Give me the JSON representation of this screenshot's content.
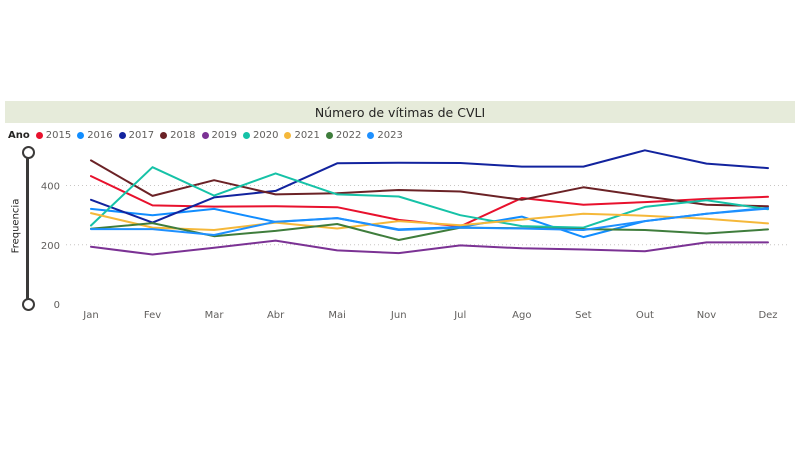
{
  "chart_data": {
    "type": "line",
    "title": "Número de vítimas de CVLI",
    "legend_title": "Ano",
    "ylabel": "Frequencia",
    "xlabel": "",
    "ylim": [
      0,
      520
    ],
    "yticks": [
      0,
      200,
      400
    ],
    "legend_position": "top-left",
    "grid": true,
    "categories": [
      "Jan",
      "Fev",
      "Mar",
      "Abr",
      "Mai",
      "Jun",
      "Jul",
      "Ago",
      "Set",
      "Out",
      "Nov",
      "Dez"
    ],
    "series": [
      {
        "name": "2015",
        "color": "#e8112d",
        "values": [
          432,
          333,
          329,
          330,
          327,
          284,
          262,
          358,
          335,
          344,
          355,
          362
        ]
      },
      {
        "name": "2016",
        "color": "#118dff",
        "values": [
          321,
          300,
          321,
          277,
          290,
          252,
          260,
          295,
          226,
          280,
          305,
          325
        ]
      },
      {
        "name": "2017",
        "color": "#12239e",
        "values": [
          352,
          275,
          360,
          382,
          475,
          477,
          476,
          464,
          464,
          519,
          474,
          459
        ]
      },
      {
        "name": "2018",
        "color": "#6b2226",
        "values": [
          485,
          365,
          418,
          370,
          374,
          385,
          380,
          352,
          394,
          364,
          335,
          330
        ]
      },
      {
        "name": "2019",
        "color": "#7b3294",
        "values": [
          193,
          167,
          190,
          214,
          181,
          172,
          198,
          188,
          184,
          178,
          208,
          208
        ]
      },
      {
        "name": "2020",
        "color": "#16c2a7",
        "values": [
          265,
          462,
          366,
          441,
          370,
          363,
          300,
          263,
          258,
          328,
          350,
          320
        ]
      },
      {
        "name": "2021",
        "color": "#f5b83a",
        "values": [
          307,
          258,
          250,
          275,
          255,
          280,
          266,
          285,
          305,
          298,
          288,
          272
        ]
      },
      {
        "name": "2022",
        "color": "#3f7d3c",
        "values": [
          254,
          273,
          229,
          247,
          270,
          216,
          258,
          256,
          253,
          250,
          238,
          252
        ]
      },
      {
        "name": "2023",
        "color": "#1e90ff",
        "values": [
          253,
          253,
          233,
          278,
          290,
          250,
          258,
          255,
          250,
          280,
          305,
          322
        ]
      }
    ]
  }
}
